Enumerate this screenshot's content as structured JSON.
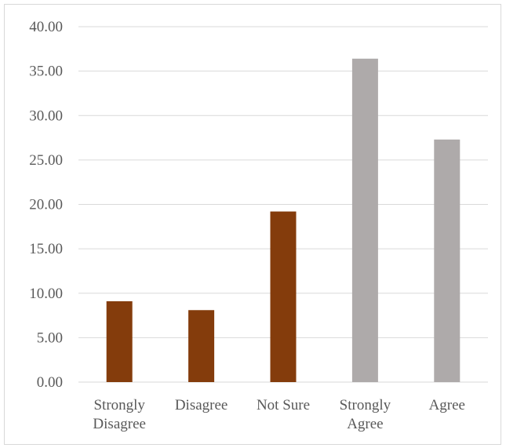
{
  "chart_data": {
    "type": "bar",
    "categories": [
      [
        "Strongly",
        "Disagree"
      ],
      [
        "Disagree"
      ],
      [
        "Not Sure"
      ],
      [
        "Strongly",
        "Agree"
      ],
      [
        "Agree"
      ]
    ],
    "values": [
      9.1,
      8.1,
      19.2,
      36.4,
      27.3
    ],
    "bar_colors": [
      "#843c0c",
      "#843c0c",
      "#843c0c",
      "#aeaaaa",
      "#aeaaaa"
    ],
    "ylim": [
      0,
      40
    ],
    "yticks": [
      "0.00",
      "5.00",
      "10.00",
      "15.00",
      "20.00",
      "25.00",
      "30.00",
      "35.00",
      "40.00"
    ],
    "grid": true,
    "gridline_color": "#d9d9d9",
    "title": "",
    "xlabel": "",
    "ylabel": ""
  }
}
